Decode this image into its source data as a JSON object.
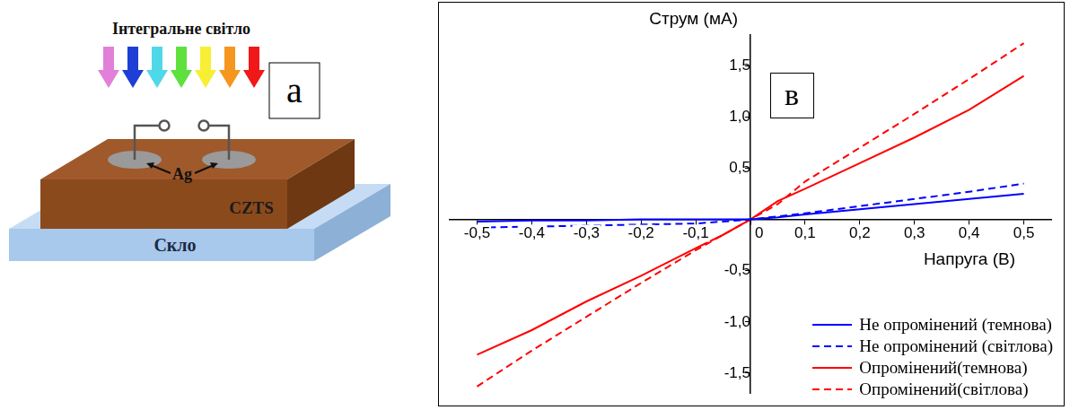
{
  "diagram": {
    "panel_label": "а",
    "light_label": "Інтегральне світло",
    "contact_label": "Ag",
    "film_label": "CZTS",
    "substrate_label": "Скло"
  },
  "chart_data": {
    "type": "line",
    "annotations": [
      "в"
    ],
    "x_label": "Напруга (В)",
    "y_label": "Струм (мА)",
    "x": [
      -0.5,
      -0.4,
      -0.3,
      -0.2,
      -0.1,
      -0.05,
      0,
      0.05,
      0.1,
      0.2,
      0.3,
      0.4,
      0.5
    ],
    "series": [
      {
        "name": "Не опромінений (темнова)",
        "color": "#0000ff",
        "line_style": "solid",
        "values": [
          -0.02,
          -0.01,
          -0.01,
          0,
          0,
          0,
          0,
          0.02,
          0.05,
          0.1,
          0.15,
          0.2,
          0.25
        ]
      },
      {
        "name": "Не опромінений (світлова)",
        "color": "#0000ff",
        "line_style": "dashed",
        "values": [
          -0.08,
          -0.07,
          -0.06,
          -0.05,
          -0.04,
          -0.02,
          0,
          0.03,
          0.06,
          0.13,
          0.2,
          0.27,
          0.35
        ]
      },
      {
        "name": "Опромінений(темнова)",
        "color": "#ff0000",
        "line_style": "solid",
        "values": [
          -1.32,
          -1.08,
          -0.8,
          -0.55,
          -0.28,
          -0.15,
          0,
          0.18,
          0.3,
          0.55,
          0.8,
          1.07,
          1.4
        ]
      },
      {
        "name": "Опромінений(світлова)",
        "color": "#ff0000",
        "line_style": "dashed",
        "values": [
          -1.63,
          -1.28,
          -0.95,
          -0.62,
          -0.3,
          -0.15,
          0,
          0.15,
          0.37,
          0.7,
          1.03,
          1.37,
          1.72
        ]
      }
    ],
    "xlim": [
      -0.55,
      0.55
    ],
    "xticks": [
      {
        "value": -0.5,
        "label": "-0,5"
      },
      {
        "value": -0.4,
        "label": "-0,4"
      },
      {
        "value": -0.3,
        "label": "-0,3"
      },
      {
        "value": -0.2,
        "label": "-0,2"
      },
      {
        "value": -0.1,
        "label": "-0,1"
      },
      0,
      {
        "value": 0.1,
        "label": "0,1"
      },
      {
        "value": 0.2,
        "label": "0,2"
      },
      {
        "value": 0.3,
        "label": "0,3"
      },
      {
        "value": 0.4,
        "label": "0,4"
      },
      {
        "value": 0.5,
        "label": "0,5"
      }
    ],
    "ylim": [
      -1.7,
      1.8
    ],
    "yticks": [
      {
        "value": -1.5,
        "label": "-1,5"
      },
      {
        "value": -1.0,
        "label": "-1,0"
      },
      {
        "value": -0.5,
        "label": "-0,5"
      },
      {
        "value": 0.5,
        "label": "0,5"
      },
      {
        "value": 1.0,
        "label": "1,0"
      },
      {
        "value": 1.5,
        "label": "1,5"
      }
    ],
    "grid": false,
    "legend": "lower right"
  }
}
